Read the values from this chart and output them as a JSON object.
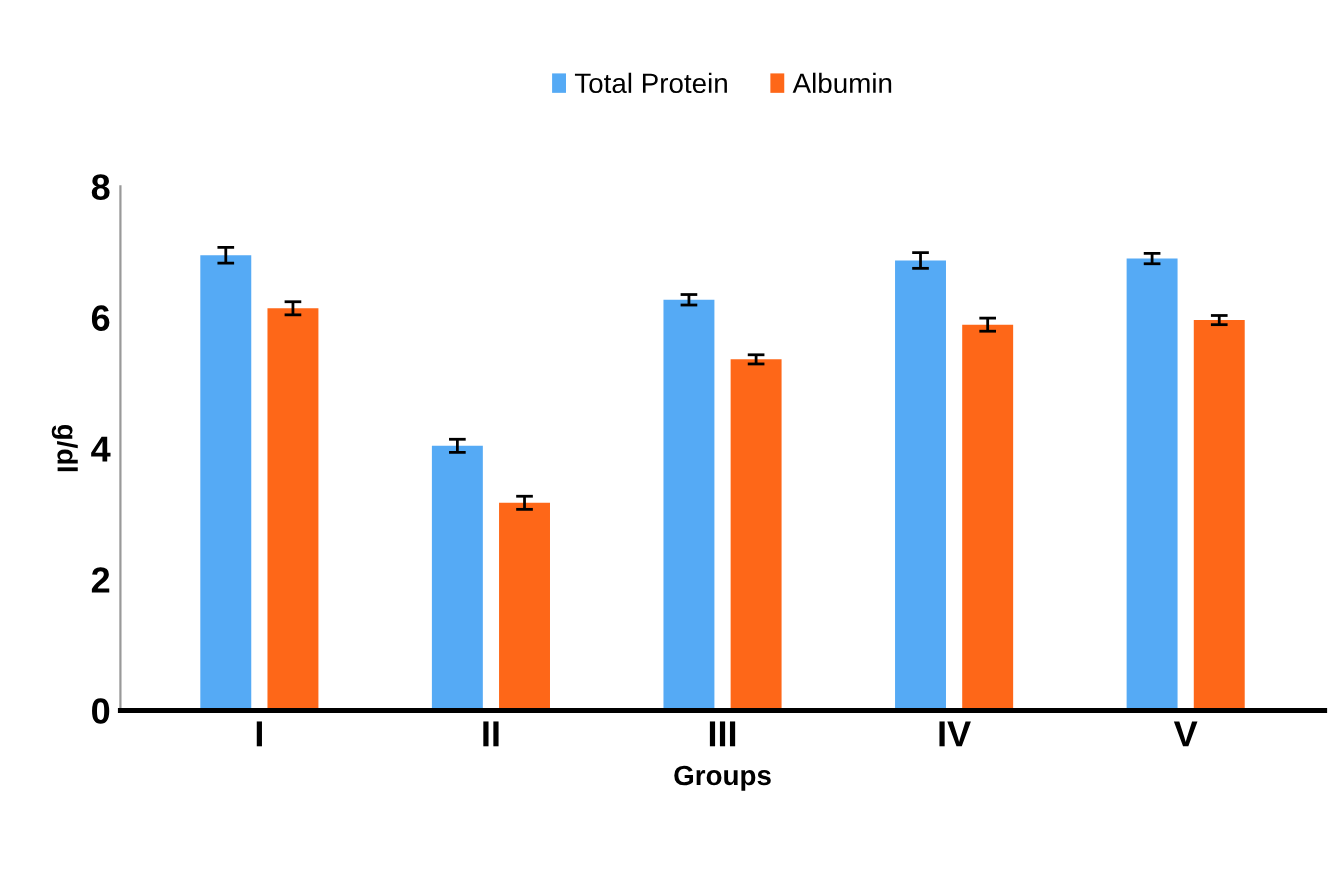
{
  "chart_data": {
    "type": "bar",
    "xlabel": "Groups",
    "ylabel": "g/dl",
    "categories": [
      "I",
      "II",
      "III",
      "IV",
      "V"
    ],
    "series": [
      {
        "name": "Total Protein",
        "color": "#55aaf5",
        "values": [
          6.95,
          4.04,
          6.27,
          6.87,
          6.9
        ],
        "errors": [
          0.12,
          0.1,
          0.08,
          0.12,
          0.08
        ]
      },
      {
        "name": "Albumin",
        "color": "#fe6718",
        "values": [
          6.14,
          3.17,
          5.36,
          5.89,
          5.96
        ],
        "errors": [
          0.1,
          0.1,
          0.07,
          0.1,
          0.07
        ]
      }
    ],
    "ylim": [
      0,
      8
    ],
    "yticks": [
      0,
      2,
      4,
      6,
      8
    ],
    "grid": false,
    "legend": "top"
  }
}
